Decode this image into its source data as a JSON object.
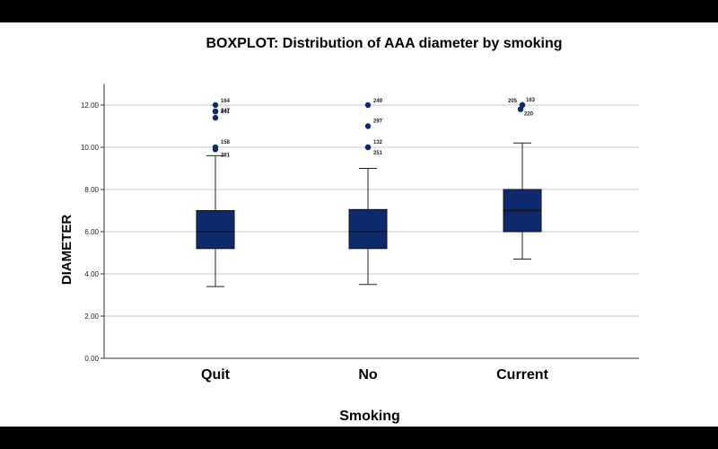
{
  "chart_data": {
    "type": "boxplot",
    "title": "BOXPLOT: Distribution of AAA diameter by smoking",
    "xlabel": "Smoking",
    "ylabel": "DIAMETER",
    "ylim": [
      0,
      13
    ],
    "yticks": [
      "0.00",
      "2.00",
      "4.00",
      "6.00",
      "8.00",
      "10.00",
      "12.00"
    ],
    "ytick_values": [
      0,
      2,
      4,
      6,
      8,
      10,
      12
    ],
    "grid": "horizontal",
    "box_color": "#0d2a6e",
    "categories": [
      "Quit",
      "No",
      "Current"
    ],
    "groups": [
      {
        "category": "Quit",
        "whisker_low": 3.4,
        "q1": 5.2,
        "median": 6.0,
        "q3": 7.0,
        "whisker_high": 9.6,
        "outliers": [
          {
            "y": 12.0,
            "label": "164"
          },
          {
            "y": 11.7,
            "label": "247"
          },
          {
            "y": 11.7,
            "label": "241"
          },
          {
            "y": 11.4,
            "label": ""
          },
          {
            "y": 10.0,
            "label": "158"
          },
          {
            "y": 9.9,
            "label": "281"
          }
        ]
      },
      {
        "category": "No",
        "whisker_low": 3.5,
        "q1": 5.2,
        "median": 6.0,
        "q3": 7.05,
        "whisker_high": 9.0,
        "outliers": [
          {
            "y": 12.0,
            "label": "249"
          },
          {
            "y": 11.0,
            "label": "297"
          },
          {
            "y": 10.0,
            "label": "132"
          },
          {
            "y": 10.0,
            "label": "251"
          }
        ]
      },
      {
        "category": "Current",
        "whisker_low": 4.7,
        "q1": 6.0,
        "median": 7.0,
        "q3": 8.0,
        "whisker_high": 10.2,
        "outliers": [
          {
            "y": 12.0,
            "label": "205"
          },
          {
            "y": 12.0,
            "label": "163"
          },
          {
            "y": 11.8,
            "label": "220"
          }
        ]
      }
    ]
  }
}
